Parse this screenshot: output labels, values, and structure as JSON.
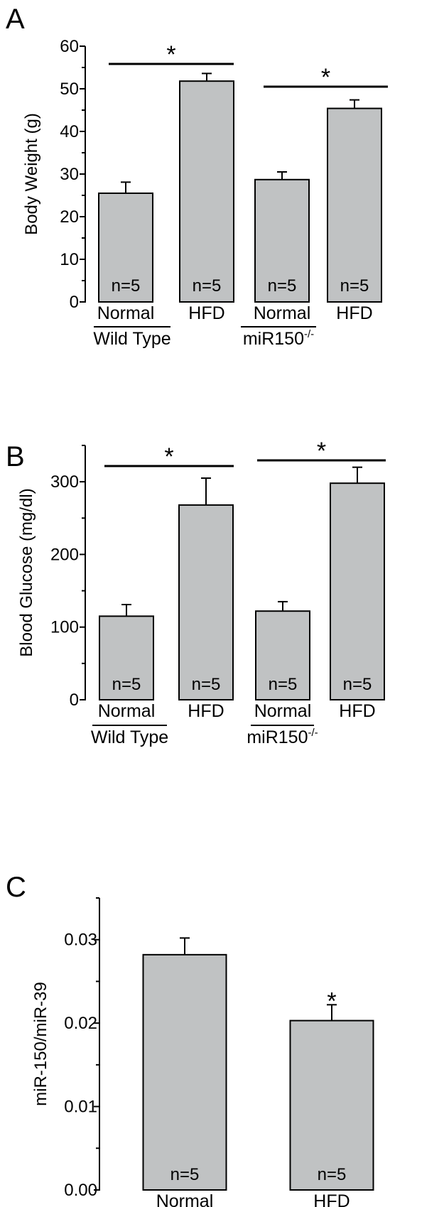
{
  "chart_data": [
    {
      "panel": "A",
      "type": "bar",
      "ylabel": "Body Weight (g)",
      "ylim": [
        0,
        60
      ],
      "yticks": [
        "0",
        "10",
        "20",
        "30",
        "40",
        "50",
        "60"
      ],
      "bar_color": "#c0c2c3",
      "categories": [
        "Normal",
        "HFD",
        "Normal",
        "HFD"
      ],
      "groups": [
        {
          "label": "Wild Type",
          "sup": ""
        },
        {
          "label": "miR150",
          "sup": "-/-"
        }
      ],
      "values": [
        25.5,
        51.8,
        28.7,
        45.4
      ],
      "errors": [
        2.6,
        1.8,
        1.8,
        2.0
      ],
      "n_labels": [
        "n=5",
        "n=5",
        "n=5",
        "n=5"
      ],
      "significance": [
        {
          "label": "*",
          "from": 0,
          "to": 1
        },
        {
          "label": "*",
          "from": 2,
          "to": 3
        }
      ]
    },
    {
      "panel": "B",
      "type": "bar",
      "ylabel": "Blood Glucose (mg/dl)",
      "ylim": [
        0,
        350
      ],
      "yticks": [
        "0",
        "100",
        "200",
        "300"
      ],
      "bar_color": "#c0c2c3",
      "categories": [
        "Normal",
        "HFD",
        "Normal",
        "HFD"
      ],
      "groups": [
        {
          "label": "Wild Type",
          "sup": ""
        },
        {
          "label": "miR150",
          "sup": "-/-"
        }
      ],
      "values": [
        115,
        268,
        122,
        298
      ],
      "errors": [
        16,
        37,
        13,
        22
      ],
      "n_labels": [
        "n=5",
        "n=5",
        "n=5",
        "n=5"
      ],
      "significance": [
        {
          "label": "*",
          "from": 0,
          "to": 1
        },
        {
          "label": "*",
          "from": 2,
          "to": 3
        }
      ]
    },
    {
      "panel": "C",
      "type": "bar",
      "ylabel": "miR-150/miR-39",
      "ylim": [
        0,
        0.035
      ],
      "yticks": [
        "0.00",
        "0.01",
        "0.02",
        "0.03"
      ],
      "bar_color": "#c0c2c3",
      "categories": [
        "Normal",
        "HFD"
      ],
      "groups": [],
      "values": [
        0.0282,
        0.0203
      ],
      "errors": [
        0.002,
        0.0019
      ],
      "n_labels": [
        "n=5",
        "n=5"
      ],
      "bar_marks": [
        "",
        "*"
      ]
    }
  ]
}
